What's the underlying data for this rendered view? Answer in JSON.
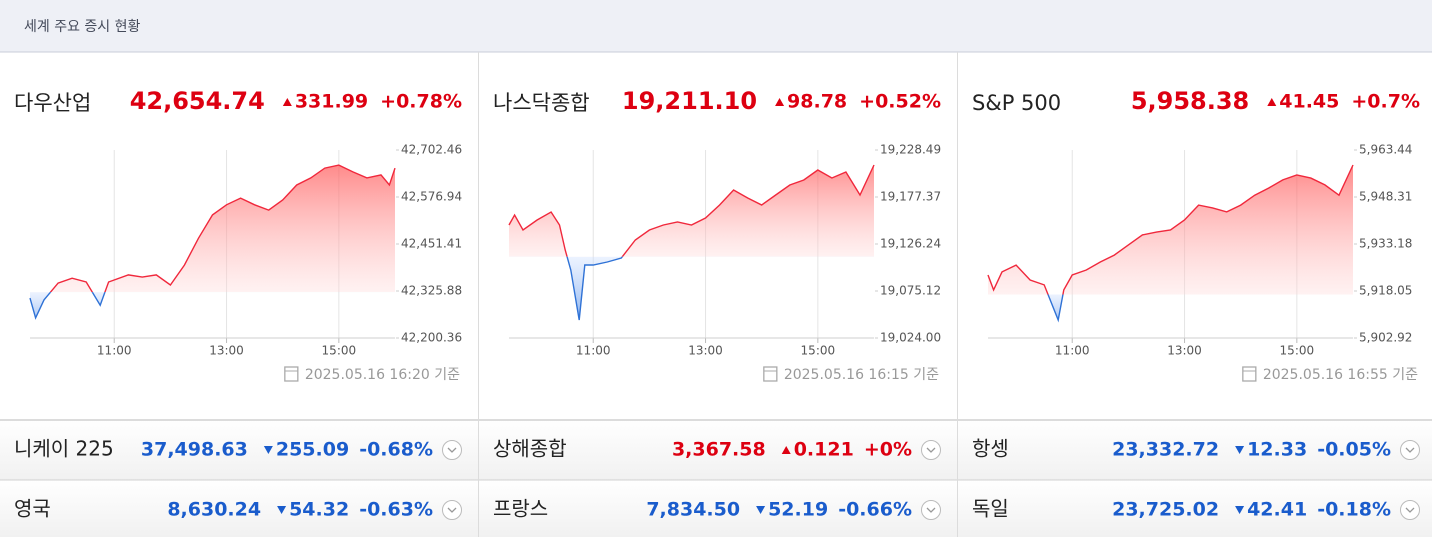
{
  "header": {
    "title": "세계 주요 증시 현황"
  },
  "colors": {
    "up": "#dd0011",
    "down": "#1a5ccc"
  },
  "panels": [
    {
      "name": "다우산업",
      "price": "42,654.74",
      "change": "331.99",
      "change_pct": "+0.78%",
      "direction": "up",
      "timestamp": "2025.05.16 16:20 기준",
      "chart": {
        "type": "line",
        "baseline": 42322.75,
        "xlim": [
          9.5,
          16.0
        ],
        "xticks": [
          {
            "value": 11,
            "label": "11:00"
          },
          {
            "value": 13,
            "label": "13:00"
          },
          {
            "value": 15,
            "label": "15:00"
          }
        ],
        "ylim": [
          42200.36,
          42702.46
        ],
        "yticks": [
          {
            "value": 42200.36,
            "label": "42,200.36"
          },
          {
            "value": 42325.88,
            "label": "42,325.88"
          },
          {
            "value": 42451.41,
            "label": "42,451.41"
          },
          {
            "value": 42576.94,
            "label": "42,576.94"
          },
          {
            "value": 42702.46,
            "label": "42,702.46"
          }
        ],
        "x": [
          9.5,
          9.6,
          9.75,
          10.0,
          10.25,
          10.5,
          10.75,
          10.9,
          11.25,
          11.5,
          11.75,
          12.0,
          12.25,
          12.5,
          12.75,
          13.0,
          13.25,
          13.5,
          13.75,
          14.0,
          14.25,
          14.5,
          14.75,
          15.0,
          15.25,
          15.5,
          15.75,
          15.9,
          16.0
        ],
        "values": [
          42307,
          42254,
          42302,
          42347,
          42360,
          42350,
          42288,
          42350,
          42369,
          42363,
          42369,
          42342,
          42395,
          42467,
          42529,
          42556,
          42574,
          42556,
          42542,
          42569,
          42609,
          42628,
          42654,
          42662,
          42644,
          42628,
          42636,
          42609,
          42654
        ]
      }
    },
    {
      "name": "나스닥종합",
      "price": "19,211.10",
      "change": "98.78",
      "change_pct": "+0.52%",
      "direction": "up",
      "timestamp": "2025.05.16 16:15 기준",
      "chart": {
        "type": "line",
        "baseline": 19112.32,
        "xlim": [
          9.5,
          16.0
        ],
        "xticks": [
          {
            "value": 11,
            "label": "11:00"
          },
          {
            "value": 13,
            "label": "13:00"
          },
          {
            "value": 15,
            "label": "15:00"
          }
        ],
        "ylim": [
          19024.0,
          19228.49
        ],
        "yticks": [
          {
            "value": 19024.0,
            "label": "19,024.00"
          },
          {
            "value": 19075.12,
            "label": "19,075.12"
          },
          {
            "value": 19126.24,
            "label": "19,126.24"
          },
          {
            "value": 19177.37,
            "label": "19,177.37"
          },
          {
            "value": 19228.49,
            "label": "19,228.49"
          }
        ],
        "x": [
          9.5,
          9.6,
          9.75,
          10.0,
          10.25,
          10.4,
          10.5,
          10.6,
          10.75,
          10.85,
          11.0,
          11.25,
          11.5,
          11.75,
          12.0,
          12.25,
          12.5,
          12.75,
          13.0,
          13.25,
          13.5,
          13.75,
          14.0,
          14.25,
          14.5,
          14.75,
          15.0,
          15.25,
          15.5,
          15.75,
          16.0
        ],
        "values": [
          19146.9,
          19157.8,
          19141.5,
          19152.3,
          19161.0,
          19146.9,
          19119.7,
          19098.0,
          19043.6,
          19103.4,
          19103.4,
          19106.7,
          19111.0,
          19130.6,
          19141.5,
          19146.9,
          19150.2,
          19146.9,
          19154.5,
          19168.7,
          19185.0,
          19176.3,
          19168.7,
          19179.5,
          19190.4,
          19195.9,
          19206.7,
          19198.0,
          19204.6,
          19179.5,
          19212.2
        ]
      }
    },
    {
      "name": "S&P 500",
      "price": "5,958.38",
      "change": "41.45",
      "change_pct": "+0.7%",
      "direction": "up",
      "timestamp": "2025.05.16 16:55 기준",
      "chart": {
        "type": "line",
        "baseline": 5916.93,
        "xlim": [
          9.5,
          16.0
        ],
        "xticks": [
          {
            "value": 11,
            "label": "11:00"
          },
          {
            "value": 13,
            "label": "13:00"
          },
          {
            "value": 15,
            "label": "15:00"
          }
        ],
        "ylim": [
          5902.92,
          5963.44
        ],
        "yticks": [
          {
            "value": 5902.92,
            "label": "5,902.92"
          },
          {
            "value": 5918.05,
            "label": "5,918.05"
          },
          {
            "value": 5933.18,
            "label": "5,933.18"
          },
          {
            "value": 5948.31,
            "label": "5,948.31"
          },
          {
            "value": 5963.44,
            "label": "5,963.44"
          }
        ],
        "x": [
          9.5,
          9.6,
          9.75,
          10.0,
          10.25,
          10.5,
          10.75,
          10.85,
          11.0,
          11.25,
          11.5,
          11.75,
          12.0,
          12.25,
          12.5,
          12.75,
          13.0,
          13.25,
          13.5,
          13.75,
          14.0,
          14.25,
          14.5,
          14.75,
          15.0,
          15.25,
          15.5,
          15.75,
          16.0
        ],
        "values": [
          5923.2,
          5918.4,
          5924.2,
          5926.4,
          5921.6,
          5920.0,
          5908.7,
          5918.4,
          5923.2,
          5924.8,
          5927.4,
          5929.6,
          5932.9,
          5936.1,
          5937.0,
          5937.7,
          5940.9,
          5945.7,
          5944.8,
          5943.5,
          5945.7,
          5948.9,
          5951.2,
          5953.8,
          5955.4,
          5954.4,
          5952.2,
          5948.9,
          5958.6
        ]
      }
    }
  ],
  "rows": [
    [
      {
        "name": "니케이 225",
        "price": "37,498.63",
        "change": "255.09",
        "change_pct": "-0.68%",
        "direction": "down"
      },
      {
        "name": "상해종합",
        "price": "3,367.58",
        "change": "0.121",
        "change_pct": "+0%",
        "direction": "up"
      },
      {
        "name": "항셍",
        "price": "23,332.72",
        "change": "12.33",
        "change_pct": "-0.05%",
        "direction": "down"
      }
    ],
    [
      {
        "name": "영국",
        "price": "8,630.24",
        "change": "54.32",
        "change_pct": "-0.63%",
        "direction": "down"
      },
      {
        "name": "프랑스",
        "price": "7,834.50",
        "change": "52.19",
        "change_pct": "-0.66%",
        "direction": "down"
      },
      {
        "name": "독일",
        "price": "23,725.02",
        "change": "42.41",
        "change_pct": "-0.18%",
        "direction": "down"
      }
    ]
  ]
}
